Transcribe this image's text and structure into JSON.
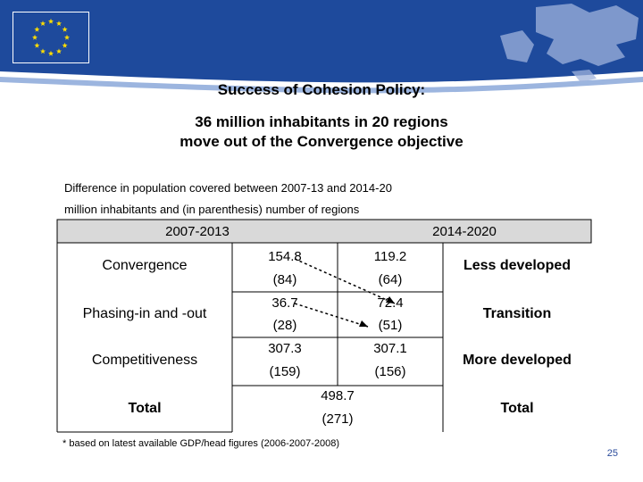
{
  "title": "Success of Cohesion Policy:",
  "subtitle_line1": "36 million inhabitants in 20 regions",
  "subtitle_line2": "move out of the Convergence objective",
  "desc_line1": "Difference in population covered between 2007-13 and 2014-20",
  "desc_line2": "million inhabitants and (in parenthesis) number of regions",
  "table": {
    "header_left": "2007-2013",
    "header_right": "2014-2020",
    "rows_left": [
      "Convergence",
      "Phasing-in and -out",
      "Competitiveness",
      "Total"
    ],
    "rows_right": [
      "Less developed",
      "Transition",
      "More developed",
      "Total"
    ],
    "convergence": {
      "pop_2007": "154.8",
      "pop_2014": "119.2",
      "reg_2007": "(84)",
      "reg_2014": "(64)"
    },
    "phasing": {
      "pop_2007": "36.7",
      "pop_2014": "72.4",
      "reg_2007": "(28)",
      "reg_2014": "(51)"
    },
    "competitiveness": {
      "pop_2007": "307.3",
      "pop_2014": "307.1",
      "reg_2007": "(159)",
      "reg_2014": "(156)"
    },
    "total": {
      "pop": "498.7",
      "reg": "(271)"
    }
  },
  "footnote": "* based on latest available GDP/head figures (2006-2007-2008)",
  "page_number": "25",
  "colors": {
    "blue": "#1e4a9c",
    "gray": "#d9d9d9",
    "star": "#ffdd00"
  },
  "icons": {
    "flag": "eu-flag-icon",
    "map": "europe-map-icon"
  }
}
